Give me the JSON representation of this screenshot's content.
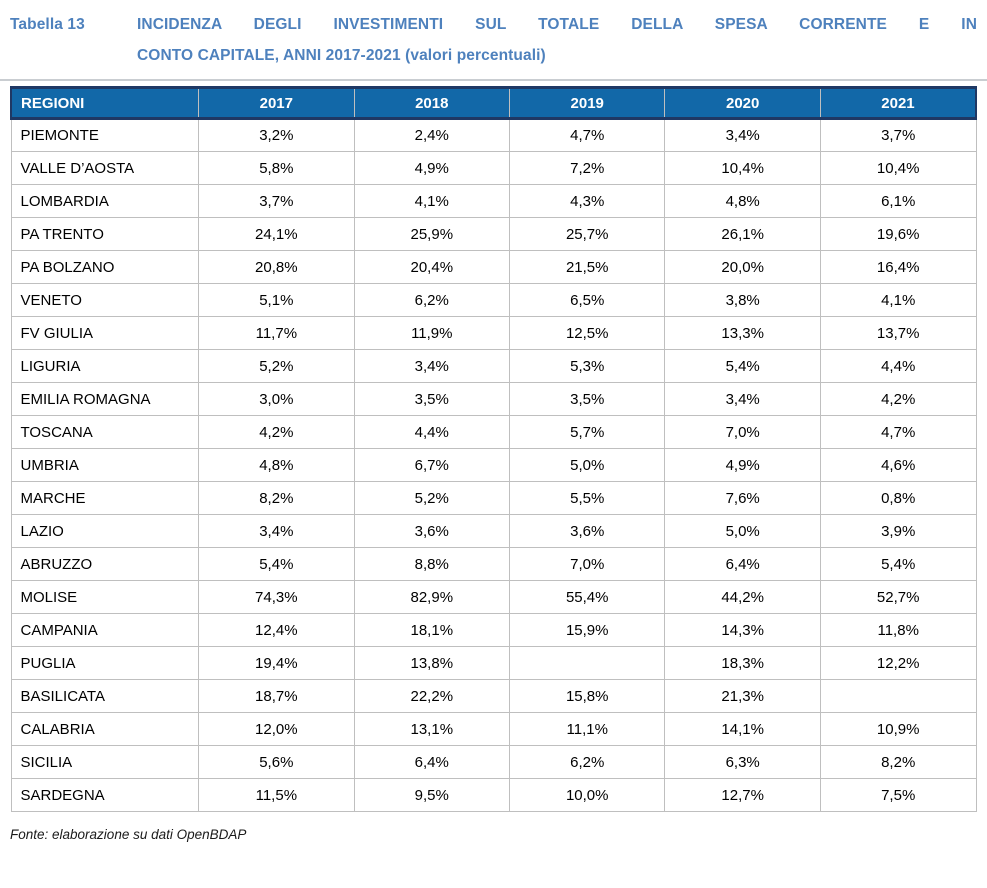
{
  "title": {
    "label": "Tabella 13",
    "line1": "INCIDENZA DEGLI INVESTIMENTI SUL TOTALE DELLA SPESA CORRENTE E IN",
    "line2": "CONTO CAPITALE, ANNI 2017-2021 (valori percentuali)"
  },
  "table": {
    "columns": [
      "REGIONI",
      "2017",
      "2018",
      "2019",
      "2020",
      "2021"
    ],
    "rows": [
      {
        "region": "PIEMONTE",
        "values": [
          "3,2%",
          "2,4%",
          "4,7%",
          "3,4%",
          "3,7%"
        ]
      },
      {
        "region": "VALLE D’AOSTA",
        "values": [
          "5,8%",
          "4,9%",
          "7,2%",
          "10,4%",
          "10,4%"
        ]
      },
      {
        "region": "LOMBARDIA",
        "values": [
          "3,7%",
          "4,1%",
          "4,3%",
          "4,8%",
          "6,1%"
        ]
      },
      {
        "region": "PA TRENTO",
        "values": [
          "24,1%",
          "25,9%",
          "25,7%",
          "26,1%",
          "19,6%"
        ]
      },
      {
        "region": "PA BOLZANO",
        "values": [
          "20,8%",
          "20,4%",
          "21,5%",
          "20,0%",
          "16,4%"
        ]
      },
      {
        "region": "VENETO",
        "values": [
          "5,1%",
          "6,2%",
          "6,5%",
          "3,8%",
          "4,1%"
        ]
      },
      {
        "region": "FV GIULIA",
        "values": [
          "11,7%",
          "11,9%",
          "12,5%",
          "13,3%",
          "13,7%"
        ]
      },
      {
        "region": "LIGURIA",
        "values": [
          "5,2%",
          "3,4%",
          "5,3%",
          "5,4%",
          "4,4%"
        ]
      },
      {
        "region": "EMILIA ROMAGNA",
        "values": [
          "3,0%",
          "3,5%",
          "3,5%",
          "3,4%",
          "4,2%"
        ]
      },
      {
        "region": "TOSCANA",
        "values": [
          "4,2%",
          "4,4%",
          "5,7%",
          "7,0%",
          "4,7%"
        ]
      },
      {
        "region": "UMBRIA",
        "values": [
          "4,8%",
          "6,7%",
          "5,0%",
          "4,9%",
          "4,6%"
        ]
      },
      {
        "region": "MARCHE",
        "values": [
          "8,2%",
          "5,2%",
          "5,5%",
          "7,6%",
          "0,8%"
        ]
      },
      {
        "region": "LAZIO",
        "values": [
          "3,4%",
          "3,6%",
          "3,6%",
          "5,0%",
          "3,9%"
        ]
      },
      {
        "region": "ABRUZZO",
        "values": [
          "5,4%",
          "8,8%",
          "7,0%",
          "6,4%",
          "5,4%"
        ]
      },
      {
        "region": "MOLISE",
        "values": [
          "74,3%",
          "82,9%",
          "55,4%",
          "44,2%",
          "52,7%"
        ]
      },
      {
        "region": "CAMPANIA",
        "values": [
          "12,4%",
          "18,1%",
          "15,9%",
          "14,3%",
          "11,8%"
        ]
      },
      {
        "region": "PUGLIA",
        "values": [
          "19,4%",
          "13,8%",
          "",
          "18,3%",
          "12,2%"
        ]
      },
      {
        "region": "BASILICATA",
        "values": [
          "18,7%",
          "22,2%",
          "15,8%",
          "21,3%",
          ""
        ]
      },
      {
        "region": "CALABRIA",
        "values": [
          "12,0%",
          "13,1%",
          "11,1%",
          "14,1%",
          "10,9%"
        ]
      },
      {
        "region": "SICILIA",
        "values": [
          "5,6%",
          "6,4%",
          "6,2%",
          "6,3%",
          "8,2%"
        ]
      },
      {
        "region": "SARDEGNA",
        "values": [
          "11,5%",
          "9,5%",
          "10,0%",
          "12,7%",
          "7,5%"
        ]
      }
    ]
  },
  "footer": {
    "source": "Fonte: elaborazione su dati OpenBDAP"
  },
  "colors": {
    "header_bg": "#1268A8",
    "header_dark_border": "#1F3864",
    "grid_line": "#BFBFBF",
    "title_text": "#4E81BD"
  }
}
